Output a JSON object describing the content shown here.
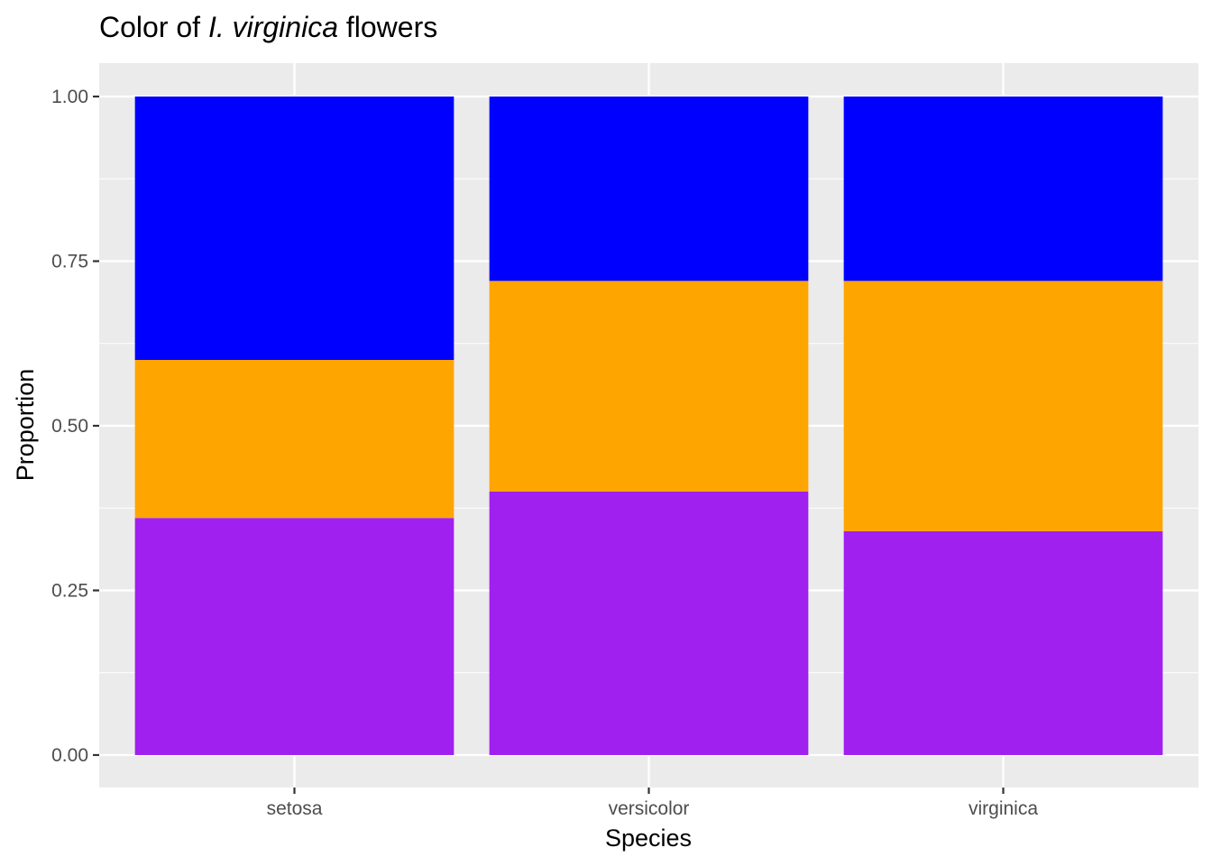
{
  "chart_data": {
    "type": "bar",
    "stacked": true,
    "title": {
      "prefix": "Color of ",
      "italic": "I. virginica",
      "suffix": " flowers"
    },
    "xlabel": "Species",
    "ylabel": "Proportion",
    "categories": [
      "setosa",
      "versicolor",
      "virginica"
    ],
    "ylim": [
      0,
      1
    ],
    "yticks": [
      "0.00",
      "0.25",
      "0.50",
      "0.75",
      "1.00"
    ],
    "grid": true,
    "legend": "none",
    "series": [
      {
        "color": "#a020f0",
        "values": [
          0.36,
          0.4,
          0.34
        ]
      },
      {
        "color": "#ffa500",
        "values": [
          0.24,
          0.32,
          0.38
        ]
      },
      {
        "color": "#0000ff",
        "values": [
          0.4,
          0.28,
          0.28
        ]
      }
    ],
    "panel_background": "#ebebeb",
    "grid_color": "#ffffff"
  }
}
